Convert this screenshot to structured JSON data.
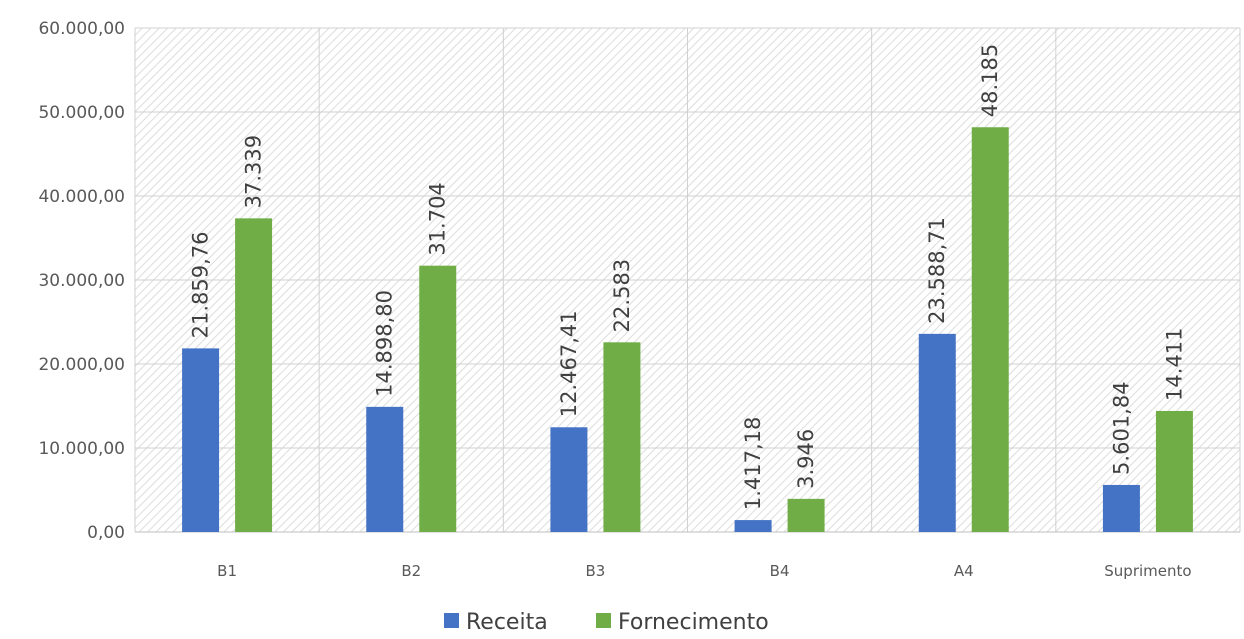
{
  "chart_data": {
    "type": "bar",
    "categories": [
      "B1",
      "B2",
      "B3",
      "B4",
      "A4",
      "Suprimento"
    ],
    "series": [
      {
        "name": "Receita",
        "color": "#4472c4",
        "values": [
          21859.76,
          14898.8,
          12467.41,
          1417.18,
          23588.71,
          5601.84
        ],
        "labels": [
          "21.859,76",
          "14.898,80",
          "12.467,41",
          "1.417,18",
          "23.588,71",
          "5.601,84"
        ]
      },
      {
        "name": "Fornecimento",
        "color": "#70ad47",
        "values": [
          37339,
          31704,
          22583,
          3946,
          48185,
          14411
        ],
        "labels": [
          "37.339",
          "31.704",
          "22.583",
          "3.946",
          "48.185",
          "14.411"
        ]
      }
    ],
    "ylim": [
      0,
      60000
    ],
    "yticks": [
      0,
      10000,
      20000,
      30000,
      40000,
      50000,
      60000
    ],
    "ytick_labels": [
      "0,00",
      "10.000,00",
      "20.000,00",
      "30.000,00",
      "40.000,00",
      "50.000,00",
      "60.000,00"
    ],
    "grid": true,
    "legend_position": "bottom"
  }
}
